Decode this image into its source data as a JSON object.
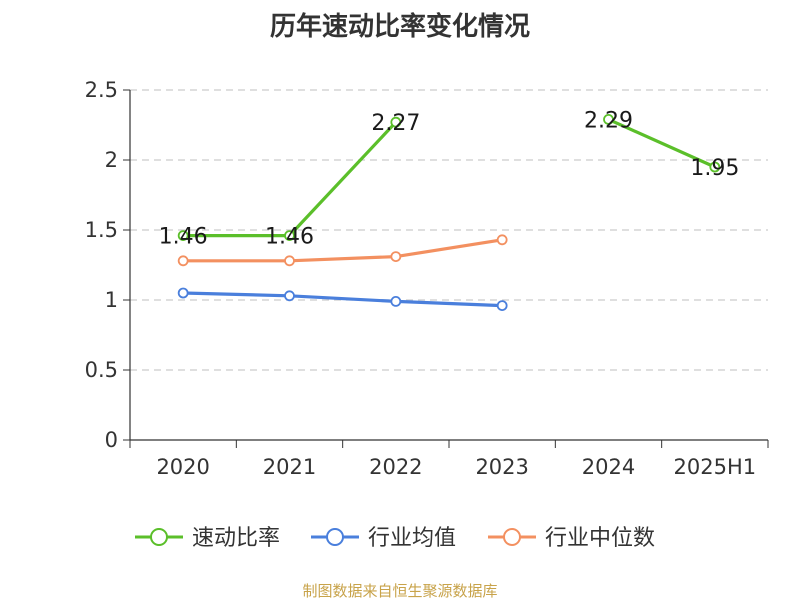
{
  "chart_data": {
    "type": "line",
    "title": "历年速动比率变化情况",
    "categories": [
      "2020",
      "2021",
      "2022",
      "2023",
      "2024",
      "2025H1"
    ],
    "ylim": [
      0,
      2.5
    ],
    "yticks": [
      "0",
      "0.5",
      "1",
      "1.5",
      "2",
      "2.5"
    ],
    "grid": true,
    "legend_position": "bottom",
    "series": [
      {
        "name": "速动比率",
        "color": "#5bbf2a",
        "values": [
          1.46,
          1.46,
          2.27,
          null,
          2.29,
          1.95
        ],
        "labels": [
          "1.46",
          "1.46",
          "2.27",
          "",
          "2.29",
          "1.95"
        ]
      },
      {
        "name": "行业均值",
        "color": "#4a7fdc",
        "values": [
          1.05,
          1.03,
          0.99,
          0.96,
          null,
          null
        ]
      },
      {
        "name": "行业中位数",
        "color": "#f39060",
        "values": [
          1.28,
          1.28,
          1.31,
          1.43,
          null,
          null
        ]
      }
    ]
  },
  "footer": {
    "source": "制图数据来自恒生聚源数据库"
  }
}
